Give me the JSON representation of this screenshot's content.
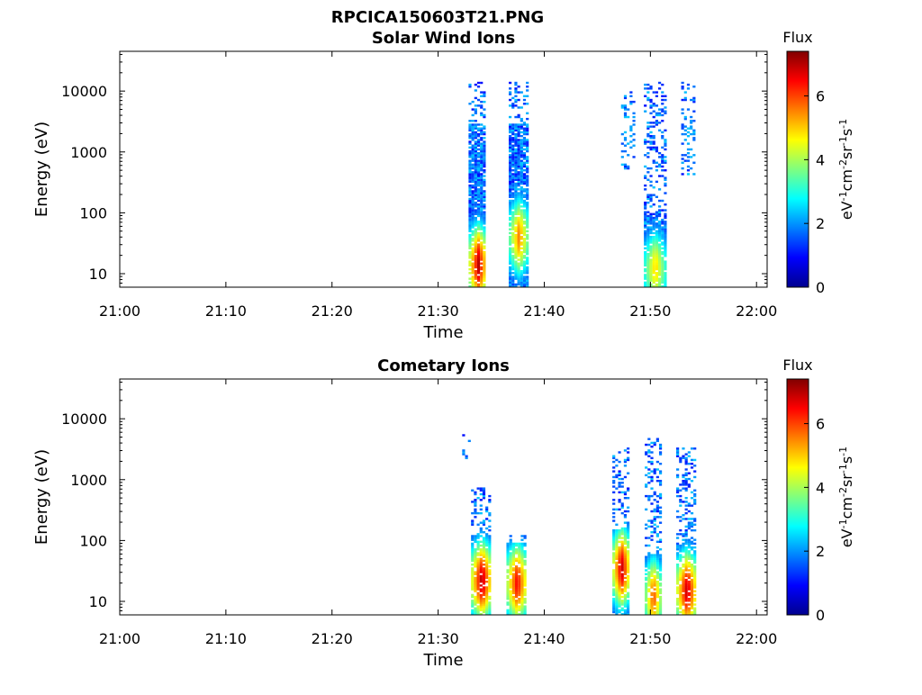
{
  "figure": {
    "filename": "RPCICA150603T21.PNG"
  },
  "chart_data": [
    {
      "type": "heatmap",
      "title": "Solar Wind Ions",
      "xlabel": "Time",
      "ylabel": "Energy (eV)",
      "x_ticks": [
        "21:00",
        "21:10",
        "21:20",
        "21:30",
        "21:40",
        "21:50",
        "22:00"
      ],
      "xlim": [
        "21:00",
        "22:01"
      ],
      "y_scale": "log",
      "y_ticks": [
        10,
        100,
        1000,
        10000
      ],
      "y_tick_labels": [
        "10",
        "100",
        "1000",
        "10000"
      ],
      "ylim": [
        6,
        45000
      ],
      "colorbar": {
        "label": "Flux",
        "units_label": "eV-1cm-2sr-1s-1",
        "ticks": [
          0,
          2,
          4,
          6
        ],
        "range": [
          0,
          7.4
        ],
        "colormap": "jet"
      },
      "bursts": [
        {
          "time": "21:33:40",
          "width_min": 1.6,
          "e_min": 6,
          "e_max": 15000,
          "max_flux": 7.0,
          "peak_energy": 14,
          "sparse_above": 3000
        },
        {
          "time": "21:37:30",
          "width_min": 1.7,
          "e_min": 6,
          "e_max": 15000,
          "max_flux": 5.6,
          "peak_energy": 40,
          "sparse_above": 3000
        },
        {
          "time": "21:50:20",
          "width_min": 1.9,
          "e_min": 6,
          "e_max": 15000,
          "max_flux": 5.0,
          "peak_energy": 12,
          "sparse_above": 100
        },
        {
          "time": "21:47:50",
          "width_min": 1.2,
          "e_min": 500,
          "e_max": 10000,
          "max_flux": 2.5,
          "peak_energy": 2000,
          "sparse_above": 1
        },
        {
          "time": "21:53:30",
          "width_min": 1.2,
          "e_min": 400,
          "e_max": 15000,
          "max_flux": 2.4,
          "peak_energy": 2000,
          "sparse_above": 1
        }
      ]
    },
    {
      "type": "heatmap",
      "title": "Cometary Ions",
      "xlabel": "Time",
      "ylabel": "Energy (eV)",
      "x_ticks": [
        "21:00",
        "21:10",
        "21:20",
        "21:30",
        "21:40",
        "21:50",
        "22:00"
      ],
      "xlim": [
        "21:00",
        "22:01"
      ],
      "y_scale": "log",
      "y_ticks": [
        10,
        100,
        1000,
        10000
      ],
      "y_tick_labels": [
        "10",
        "100",
        "1000",
        "10000"
      ],
      "ylim": [
        6,
        45000
      ],
      "colorbar": {
        "label": "Flux",
        "units_label": "eV-1cm-2sr-1s-1",
        "ticks": [
          0,
          2,
          4,
          6
        ],
        "range": [
          0,
          7.4
        ],
        "colormap": "jet"
      },
      "bursts": [
        {
          "time": "21:34:00",
          "width_min": 1.8,
          "e_min": 6,
          "e_max": 800,
          "max_flux": 7.1,
          "peak_energy": 22,
          "sparse_above": 120
        },
        {
          "time": "21:37:20",
          "width_min": 1.8,
          "e_min": 6,
          "e_max": 130,
          "max_flux": 6.6,
          "peak_energy": 20,
          "sparse_above": 90
        },
        {
          "time": "21:47:10",
          "width_min": 1.5,
          "e_min": 6,
          "e_max": 3500,
          "max_flux": 7.0,
          "peak_energy": 35,
          "sparse_above": 150
        },
        {
          "time": "21:50:10",
          "width_min": 1.4,
          "e_min": 6,
          "e_max": 5000,
          "max_flux": 6.0,
          "peak_energy": 12,
          "sparse_above": 60
        },
        {
          "time": "21:53:20",
          "width_min": 1.8,
          "e_min": 6,
          "e_max": 3500,
          "max_flux": 7.0,
          "peak_energy": 15,
          "sparse_above": 100
        },
        {
          "time": "21:32:40",
          "width_min": 0.8,
          "e_min": 2000,
          "e_max": 6000,
          "max_flux": 1.2,
          "peak_energy": 4000,
          "sparse_above": 1
        }
      ]
    }
  ]
}
